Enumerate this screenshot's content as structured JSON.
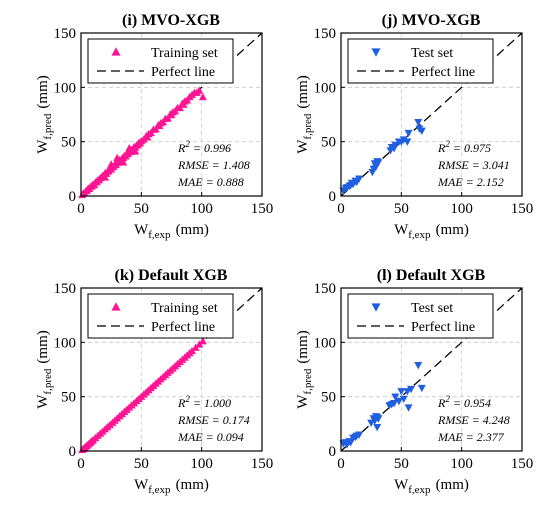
{
  "axis": {
    "xlabel": {
      "main": "W",
      "sub": "f,exp",
      "unit": "(mm)"
    },
    "ylabel": {
      "main": "W",
      "sub": "f,pred",
      "unit": "(mm)"
    },
    "ticks": [
      "0",
      "50",
      "100",
      "150"
    ]
  },
  "legend": {
    "perfect": "Perfect line",
    "train": "Training set",
    "test": "Test set"
  },
  "colors": {
    "train": "#ff1493",
    "test": "#1f5fe0",
    "line": "#000000",
    "grid": "#c8c8c8"
  },
  "chart_data": [
    {
      "type": "scatter",
      "title": "(i) MVO-XGB",
      "series_label": "Training set",
      "marker": "triangle-up",
      "color": "#ff1493",
      "xlim": [
        0,
        150
      ],
      "ylim": [
        0,
        150
      ],
      "stats": {
        "r2_label": "R",
        "r2_value": " = 0.996",
        "rmse": "RMSE = 1.408",
        "mae": "MAE = 0.888"
      },
      "points": [
        [
          1,
          1
        ],
        [
          2,
          2.5
        ],
        [
          3,
          2.5
        ],
        [
          4,
          4.5
        ],
        [
          5,
          5
        ],
        [
          6,
          7
        ],
        [
          7,
          6.5
        ],
        [
          8,
          8.5
        ],
        [
          9,
          9
        ],
        [
          10,
          10.5
        ],
        [
          11,
          10
        ],
        [
          12,
          12.5
        ],
        [
          13,
          13
        ],
        [
          14,
          14.5
        ],
        [
          15,
          14.5
        ],
        [
          16,
          16.5
        ],
        [
          17,
          17
        ],
        [
          18,
          18.5
        ],
        [
          19,
          19
        ],
        [
          20,
          21
        ],
        [
          21,
          20.5
        ],
        [
          22,
          22.5
        ],
        [
          23,
          23
        ],
        [
          24,
          25
        ],
        [
          25,
          24.5
        ],
        [
          26,
          26.5
        ],
        [
          27,
          27
        ],
        [
          28,
          29
        ],
        [
          29,
          28.5
        ],
        [
          30,
          30.5
        ],
        [
          31,
          31
        ],
        [
          32,
          33
        ],
        [
          33,
          32.5
        ],
        [
          34,
          34.5
        ],
        [
          35,
          35
        ],
        [
          36,
          37
        ],
        [
          37,
          36.5
        ],
        [
          38,
          38.5
        ],
        [
          39,
          39
        ],
        [
          40,
          41
        ],
        [
          41,
          40.5
        ],
        [
          42,
          42.5
        ],
        [
          43,
          43
        ],
        [
          44,
          45
        ],
        [
          45,
          44.5
        ],
        [
          46,
          46.5
        ],
        [
          47,
          47
        ],
        [
          48,
          49
        ],
        [
          49,
          48.5
        ],
        [
          50,
          50.5
        ],
        [
          52,
          52
        ],
        [
          54,
          55
        ],
        [
          55,
          54
        ],
        [
          56,
          57
        ],
        [
          58,
          58
        ],
        [
          60,
          61
        ],
        [
          62,
          61.5
        ],
        [
          64,
          65
        ],
        [
          65,
          64.5
        ],
        [
          66,
          67
        ],
        [
          68,
          68
        ],
        [
          70,
          71
        ],
        [
          72,
          71.5
        ],
        [
          74,
          75
        ],
        [
          75,
          74.5
        ],
        [
          76,
          77
        ],
        [
          78,
          78
        ],
        [
          80,
          81
        ],
        [
          82,
          81
        ],
        [
          84,
          85
        ],
        [
          85,
          84
        ],
        [
          86,
          87
        ],
        [
          88,
          88
        ],
        [
          90,
          91
        ],
        [
          92,
          93
        ],
        [
          94,
          95
        ],
        [
          96,
          95
        ],
        [
          98,
          97
        ],
        [
          101,
          91
        ],
        [
          30,
          35
        ],
        [
          35,
          31
        ],
        [
          40,
          44
        ],
        [
          45,
          41
        ],
        [
          25,
          29
        ],
        [
          20,
          17
        ]
      ]
    },
    {
      "type": "scatter",
      "title": "(j) MVO-XGB",
      "series_label": "Test set",
      "marker": "triangle-down",
      "color": "#1f5fe0",
      "xlim": [
        0,
        150
      ],
      "ylim": [
        0,
        150
      ],
      "stats": {
        "r2_label": "R",
        "r2_value": " = 0.975",
        "rmse": "RMSE = 3.041",
        "mae": "MAE = 2.152"
      },
      "points": [
        [
          2,
          5
        ],
        [
          4,
          7
        ],
        [
          5,
          8
        ],
        [
          7,
          9
        ],
        [
          8,
          10
        ],
        [
          9,
          12
        ],
        [
          10,
          11
        ],
        [
          12,
          14
        ],
        [
          13,
          13
        ],
        [
          15,
          16
        ],
        [
          26,
          22
        ],
        [
          27,
          25
        ],
        [
          28,
          30
        ],
        [
          29,
          27
        ],
        [
          30,
          32
        ],
        [
          31,
          31
        ],
        [
          41,
          42
        ],
        [
          42,
          45
        ],
        [
          44,
          44
        ],
        [
          45,
          47
        ],
        [
          48,
          50
        ],
        [
          50,
          50
        ],
        [
          52,
          52
        ],
        [
          55,
          50
        ],
        [
          56,
          58
        ],
        [
          64,
          68
        ],
        [
          65,
          62
        ],
        [
          67,
          60
        ]
      ]
    },
    {
      "type": "scatter",
      "title": "(k) Default XGB",
      "series_label": "Training set",
      "marker": "triangle-up",
      "color": "#ff1493",
      "xlim": [
        0,
        150
      ],
      "ylim": [
        0,
        150
      ],
      "stats": {
        "r2_label": "R",
        "r2_value": " = 1.000",
        "rmse": "RMSE = 0.174",
        "mae": "MAE = 0.094"
      },
      "points": [
        [
          1,
          1
        ],
        [
          2,
          2
        ],
        [
          3,
          3
        ],
        [
          4,
          4
        ],
        [
          5,
          5
        ],
        [
          6,
          6
        ],
        [
          7,
          7
        ],
        [
          8,
          8
        ],
        [
          9,
          9
        ],
        [
          10,
          10
        ],
        [
          12,
          12
        ],
        [
          14,
          14
        ],
        [
          16,
          16
        ],
        [
          18,
          18
        ],
        [
          20,
          20
        ],
        [
          22,
          22
        ],
        [
          24,
          24
        ],
        [
          26,
          26
        ],
        [
          28,
          28
        ],
        [
          30,
          30
        ],
        [
          32,
          32
        ],
        [
          34,
          34
        ],
        [
          36,
          36
        ],
        [
          38,
          38
        ],
        [
          40,
          40
        ],
        [
          42,
          42
        ],
        [
          44,
          44
        ],
        [
          46,
          46
        ],
        [
          48,
          48
        ],
        [
          50,
          50
        ],
        [
          52,
          52
        ],
        [
          54,
          54
        ],
        [
          56,
          56
        ],
        [
          58,
          58
        ],
        [
          60,
          60
        ],
        [
          62,
          62
        ],
        [
          64,
          64
        ],
        [
          66,
          66
        ],
        [
          68,
          68
        ],
        [
          70,
          70
        ],
        [
          72,
          72
        ],
        [
          74,
          74
        ],
        [
          76,
          76
        ],
        [
          78,
          78
        ],
        [
          80,
          80
        ],
        [
          82,
          82
        ],
        [
          84,
          84
        ],
        [
          86,
          86
        ],
        [
          88,
          88
        ],
        [
          90,
          90
        ],
        [
          92,
          92
        ],
        [
          95,
          95
        ],
        [
          98,
          98
        ],
        [
          101,
          101
        ]
      ]
    },
    {
      "type": "scatter",
      "title": "(l) Default XGB",
      "series_label": "Test set",
      "marker": "triangle-down",
      "color": "#1f5fe0",
      "xlim": [
        0,
        150
      ],
      "ylim": [
        0,
        150
      ],
      "stats": {
        "r2_label": "R",
        "r2_value": " = 0.954",
        "rmse": "RMSE = 4.248",
        "mae": "MAE = 2.377"
      },
      "points": [
        [
          2,
          7
        ],
        [
          4,
          8
        ],
        [
          5,
          6
        ],
        [
          7,
          9
        ],
        [
          8,
          8
        ],
        [
          10,
          12
        ],
        [
          12,
          13
        ],
        [
          13,
          14
        ],
        [
          15,
          15
        ],
        [
          25,
          26
        ],
        [
          27,
          30
        ],
        [
          28,
          28
        ],
        [
          29,
          32
        ],
        [
          30,
          31
        ],
        [
          31,
          30
        ],
        [
          40,
          42
        ],
        [
          42,
          43
        ],
        [
          44,
          44
        ],
        [
          45,
          50
        ],
        [
          48,
          46
        ],
        [
          50,
          55
        ],
        [
          52,
          48
        ],
        [
          55,
          55
        ],
        [
          56,
          40
        ],
        [
          58,
          57
        ],
        [
          64,
          79
        ],
        [
          67,
          58
        ],
        [
          30,
          22
        ]
      ]
    }
  ]
}
